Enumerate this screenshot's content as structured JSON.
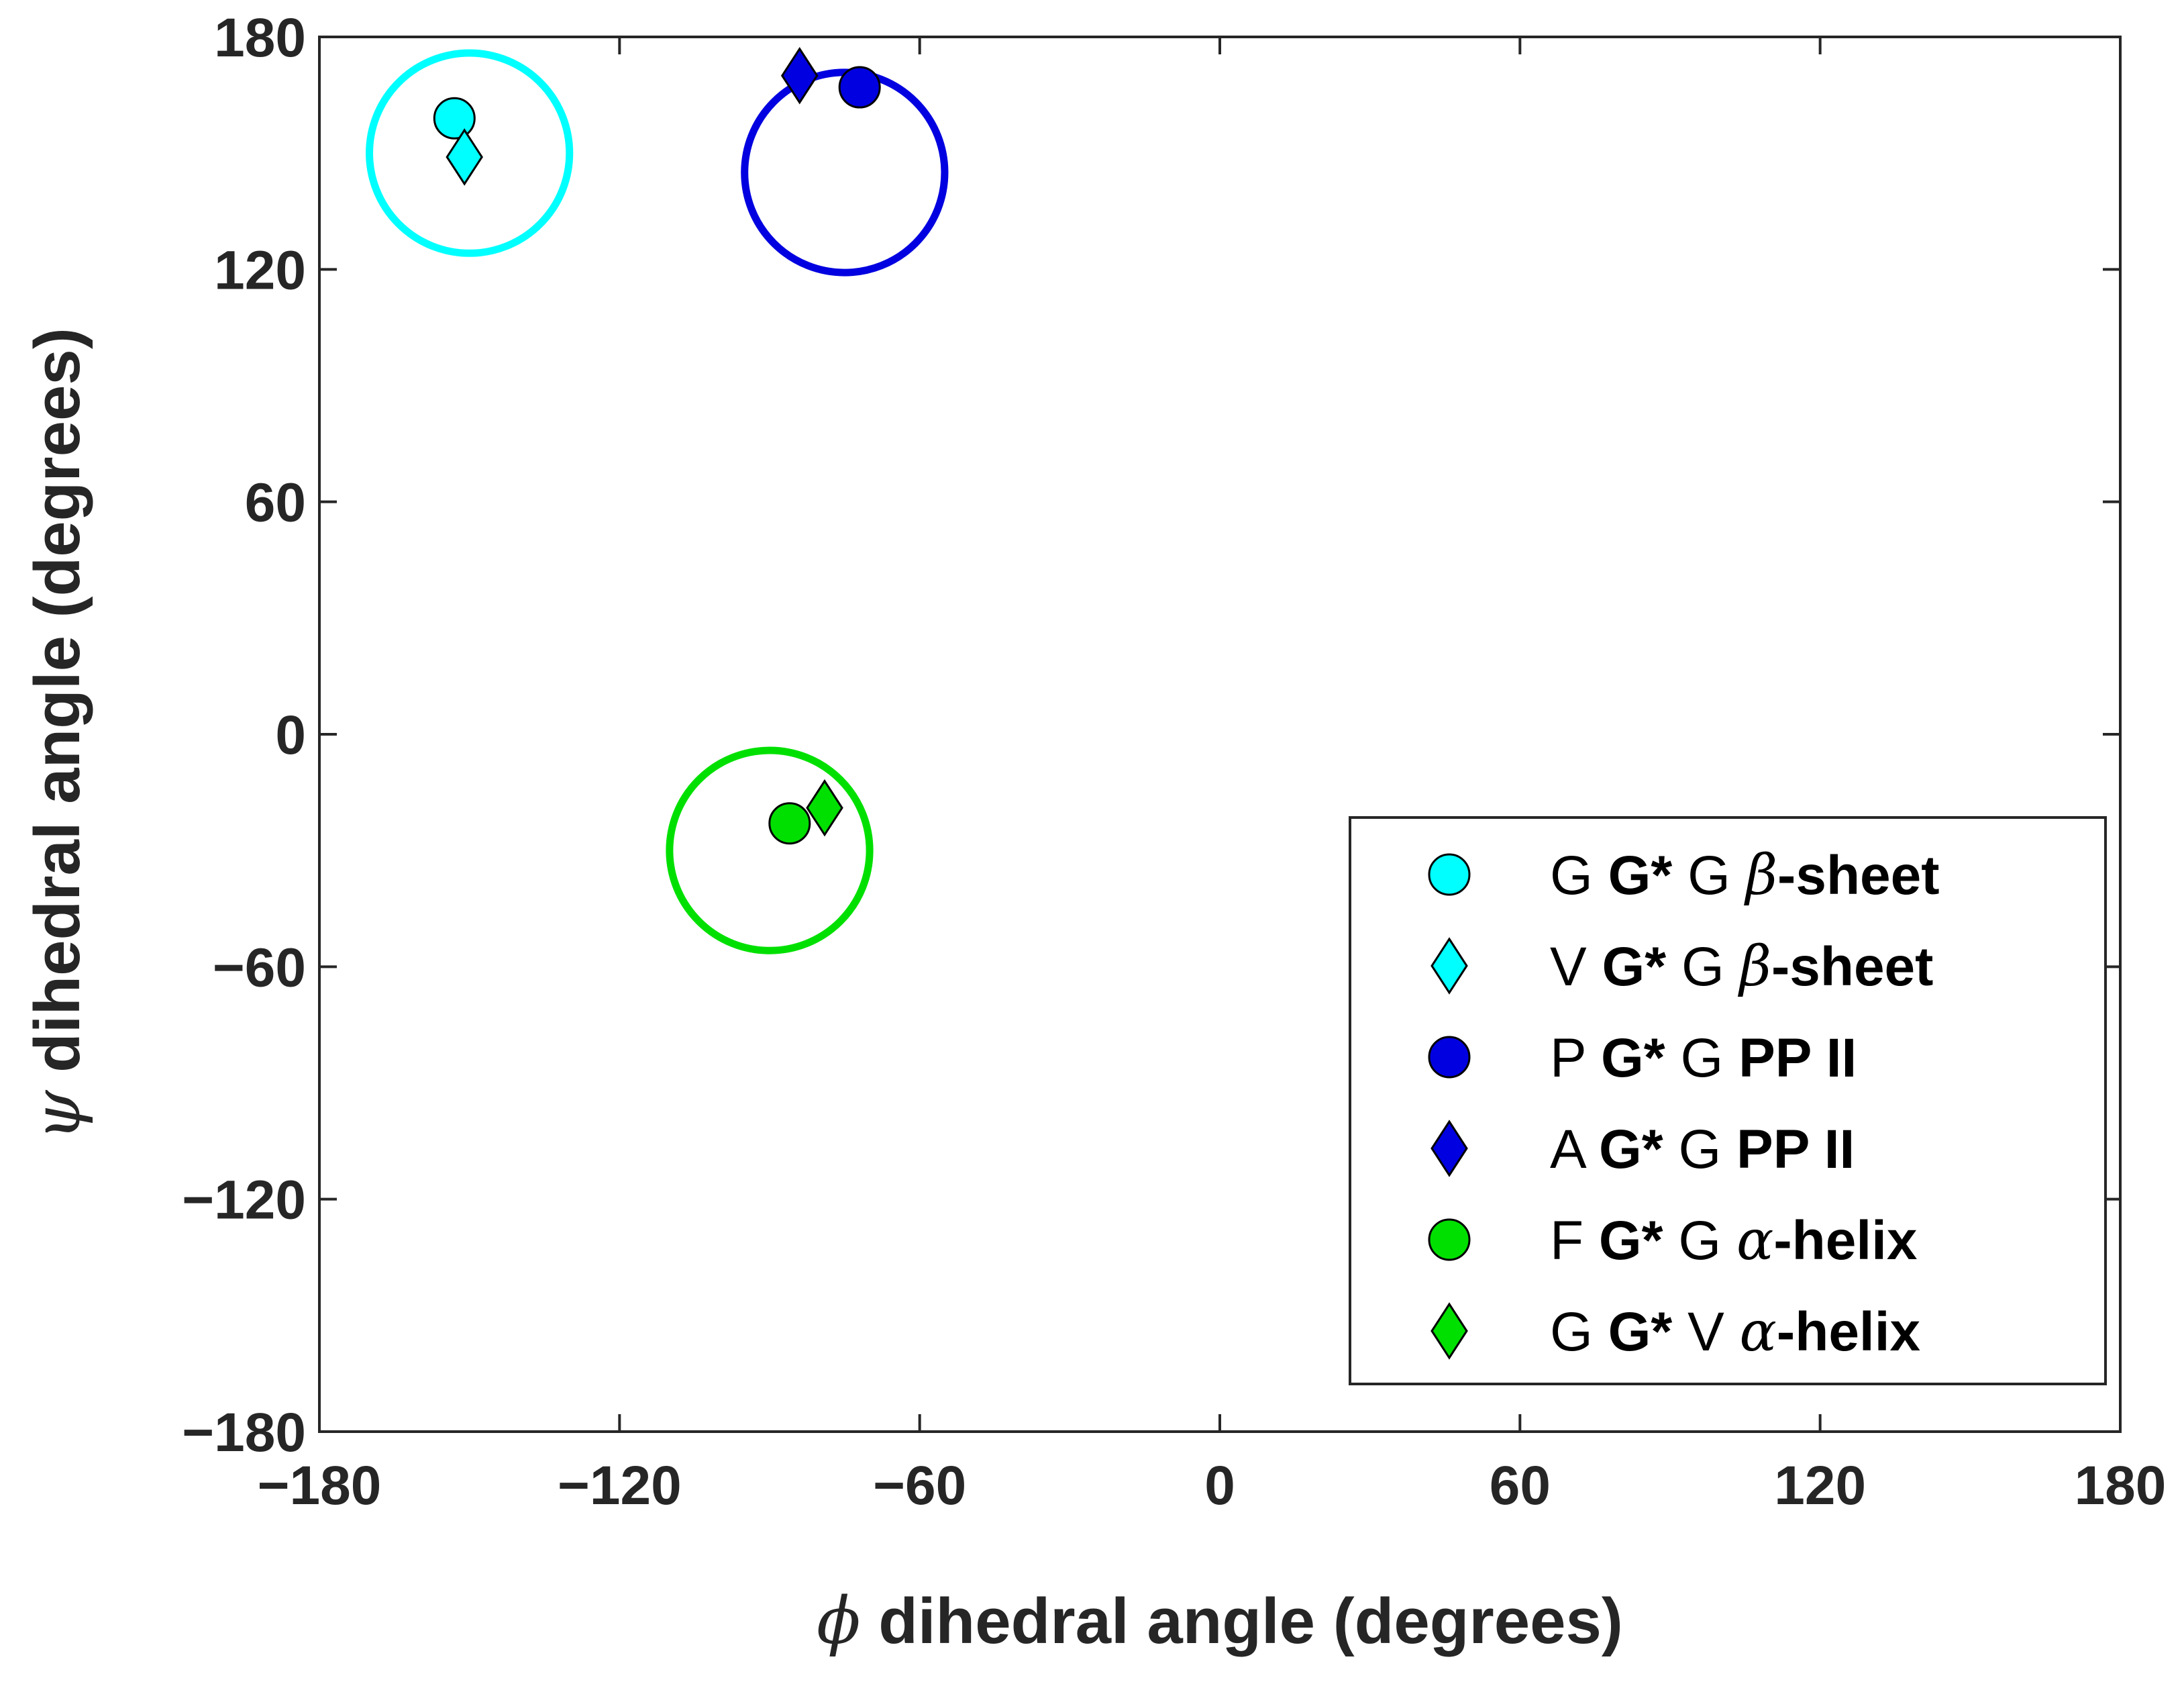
{
  "chart_data": {
    "type": "scatter",
    "xlabel": {
      "symbol": "ϕ",
      "text": " dihedral angle (degrees)"
    },
    "ylabel": {
      "symbol": "ψ",
      "text": " dihedral angle (degrees)"
    },
    "xlim": [
      -180,
      180
    ],
    "ylim": [
      -180,
      180
    ],
    "xticks": [
      -180,
      -120,
      -60,
      0,
      60,
      120,
      180
    ],
    "yticks": [
      -180,
      -120,
      -60,
      0,
      60,
      120,
      180
    ],
    "xtick_labels": [
      "−180",
      "−120",
      "−60",
      "0",
      "60",
      "120",
      "180"
    ],
    "ytick_labels": [
      "−180",
      "−120",
      "−60",
      "0",
      "60",
      "120",
      "180"
    ],
    "grid": false,
    "legend_position": "bottom-right",
    "regions": [
      {
        "name": "beta-sheet",
        "center": [
          -150,
          150
        ],
        "radius": 20,
        "color": "#00FFFF"
      },
      {
        "name": "pp-ii",
        "center": [
          -75,
          145
        ],
        "radius": 20,
        "color": "#0000E0"
      },
      {
        "name": "alpha-helix",
        "center": [
          -90,
          -30
        ],
        "radius": 20,
        "color": "#00E000"
      }
    ],
    "series": [
      {
        "name": "G G* G β-sheet",
        "parts": {
          "pre": "G ",
          "bold": "G*",
          "mid": " G ",
          "greek": "β",
          "tail": "-sheet"
        },
        "marker": "circle",
        "color": "#00FFFF",
        "x": [
          -153
        ],
        "y": [
          159
        ]
      },
      {
        "name": "V G* G β-sheet",
        "parts": {
          "pre": "V ",
          "bold": "G*",
          "mid": " G ",
          "greek": "β",
          "tail": "-sheet"
        },
        "marker": "diamond",
        "color": "#00FFFF",
        "x": [
          -151
        ],
        "y": [
          149
        ]
      },
      {
        "name": "P G* G PP II",
        "parts": {
          "pre": "P ",
          "bold": "G*",
          "mid": " G ",
          "greek": "",
          "tail": "PP II"
        },
        "marker": "circle",
        "color": "#0000E0",
        "x": [
          -72
        ],
        "y": [
          167
        ]
      },
      {
        "name": "A G* G PP II",
        "parts": {
          "pre": "A ",
          "bold": "G*",
          "mid": " G ",
          "greek": "",
          "tail": "PP II"
        },
        "marker": "diamond",
        "color": "#0000E0",
        "x": [
          -84
        ],
        "y": [
          170
        ]
      },
      {
        "name": "F G* G α-helix",
        "parts": {
          "pre": "F ",
          "bold": "G*",
          "mid": " G ",
          "greek": "α",
          "tail": "-helix"
        },
        "marker": "circle",
        "color": "#00E000",
        "x": [
          -86
        ],
        "y": [
          -23
        ]
      },
      {
        "name": "G G* V α-helix",
        "parts": {
          "pre": "G ",
          "bold": "G*",
          "mid": " V ",
          "greek": "α",
          "tail": "-helix"
        },
        "marker": "diamond",
        "color": "#00E000",
        "x": [
          -79
        ],
        "y": [
          -19
        ]
      }
    ]
  }
}
